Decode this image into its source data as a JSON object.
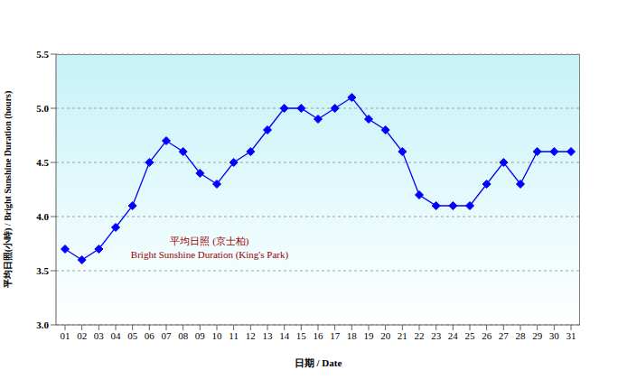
{
  "chart_data": {
    "type": "line",
    "x_label": "日期 / Date",
    "y_label": "平均日照(小時) / Bright Sunshine Duration (hours)",
    "annotation": [
      "平均日照 (京士柏)",
      "Bright Sunshine Duration (King's Park)"
    ],
    "categories": [
      "01",
      "02",
      "03",
      "04",
      "05",
      "06",
      "07",
      "08",
      "09",
      "10",
      "11",
      "12",
      "13",
      "14",
      "15",
      "16",
      "17",
      "18",
      "19",
      "20",
      "21",
      "22",
      "23",
      "24",
      "25",
      "26",
      "27",
      "28",
      "29",
      "30",
      "31"
    ],
    "values": [
      3.7,
      3.6,
      3.7,
      3.9,
      4.1,
      4.5,
      4.7,
      4.6,
      4.4,
      4.3,
      4.5,
      4.6,
      4.8,
      5.0,
      5.0,
      4.9,
      5.0,
      5.1,
      4.9,
      4.8,
      4.6,
      4.2,
      4.1,
      4.1,
      4.1,
      4.3,
      4.5,
      4.3,
      4.6,
      4.6,
      4.6
    ],
    "color": "#0000ff",
    "marker": "diamond",
    "ylim": [
      3.0,
      5.5
    ],
    "yticks": [
      {
        "value": 3.0,
        "label": "3.0"
      },
      3.5,
      {
        "value": 4.0,
        "label": "4.0"
      },
      4.5,
      {
        "value": 5.0,
        "label": "5.0"
      },
      5.5
    ],
    "grid": true
  }
}
